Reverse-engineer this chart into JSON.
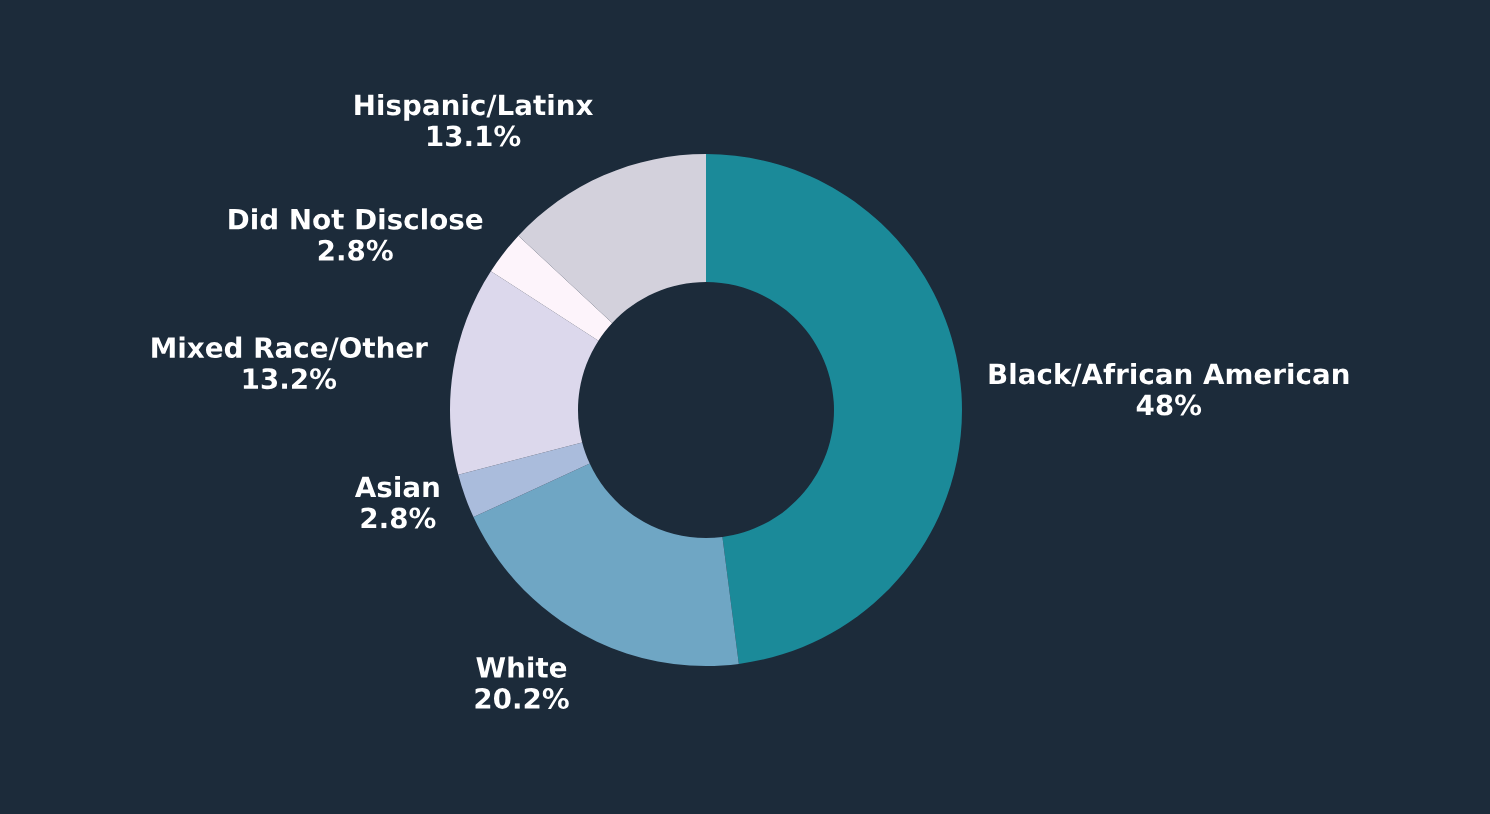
{
  "chart_data": {
    "type": "donut",
    "categories": [
      "Black/African American",
      "White",
      "Asian",
      "Mixed Race/Other",
      "Did Not Disclose",
      "Hispanic/Latinx"
    ],
    "values": [
      48,
      20.2,
      2.8,
      13.2,
      2.8,
      13.1
    ],
    "value_labels": [
      "48%",
      "20.2%",
      "2.8%",
      "13.2%",
      "2.8%",
      "13.1%"
    ],
    "colors": [
      "#1b8a99",
      "#6fa6c4",
      "#aabcdc",
      "#dcd8ec",
      "#fdf4fb",
      "#d3d1dc"
    ],
    "legend": false
  }
}
